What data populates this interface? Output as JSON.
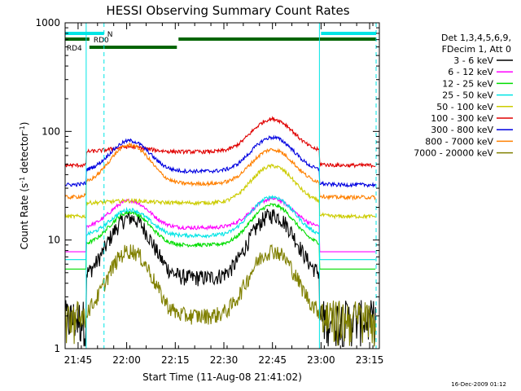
{
  "chart_data": {
    "type": "line",
    "title": "HESSI Observing Summary Count Rates",
    "xlabel": "Start Time (11-Aug-08 21:41:02)",
    "ylabel_main": "Count Rate (s",
    "ylabel_sup": "-1",
    "ylabel_mid": " detector",
    "ylabel_sup2": "-1",
    "ylabel_end": ")",
    "y_scale": "log",
    "ylim": [
      1,
      1000
    ],
    "xlim_minutes": [
      0,
      97
    ],
    "x_ticks": [
      {
        "label": "21:45",
        "t": 4
      },
      {
        "label": "22:00",
        "t": 19
      },
      {
        "label": "22:15",
        "t": 34
      },
      {
        "label": "22:30",
        "t": 49
      },
      {
        "label": "22:45",
        "t": 64
      },
      {
        "label": "23:00",
        "t": 79
      },
      {
        "label": "23:15",
        "t": 94
      }
    ],
    "y_ticks": [
      {
        "label": "1",
        "v": 1
      },
      {
        "label": "10",
        "v": 10
      },
      {
        "label": "100",
        "v": 100
      },
      {
        "label": "1000",
        "v": 1000
      }
    ],
    "grid": false,
    "legend_position": "right",
    "legend_header": [
      "Det 1,3,4,5,6,9,",
      "FDecim 1, Att 0"
    ],
    "series": [
      {
        "name": "3 - 6 keV",
        "color": "#000000",
        "base": 4.5,
        "peaks": [
          16,
          17
        ],
        "night_low": true
      },
      {
        "name": "6 - 12 keV",
        "color": "#ff00ff",
        "base": 13,
        "peaks": [
          23,
          24
        ],
        "night_low": true
      },
      {
        "name": "12 - 25 keV",
        "color": "#00dd00",
        "base": 9,
        "peaks": [
          18,
          21
        ],
        "night_low": true
      },
      {
        "name": "25 - 50 keV",
        "color": "#00e5e5",
        "base": 11,
        "peaks": [
          19,
          25
        ],
        "night_low": true
      },
      {
        "name": "50 - 100 keV",
        "color": "#cccc00",
        "base": 22,
        "peaks": [
          23,
          48
        ],
        "night_low": false
      },
      {
        "name": "100 - 300 keV",
        "color": "#e00000",
        "base": 65,
        "peaks": [
          72,
          130
        ],
        "night_low": false
      },
      {
        "name": "300 - 800 keV",
        "color": "#0000e0",
        "base": 43,
        "peaks": [
          82,
          88
        ],
        "night_low": false
      },
      {
        "name": "800 - 7000 keV",
        "color": "#ff8000",
        "base": 33,
        "peaks": [
          75,
          68
        ],
        "night_low": false
      },
      {
        "name": "7000 - 20000 keV",
        "color": "#808000",
        "base": 2.0,
        "peaks": [
          8,
          8
        ],
        "night_low": true
      }
    ],
    "peak_times": [
      20,
      64
    ],
    "data_window": [
      0,
      96
    ],
    "night_window": [
      -1,
      6.5
    ],
    "night_end": 78.5,
    "saa_gap": [
      34.3,
      34.5
    ]
  },
  "flags": [
    {
      "label": "N",
      "color": "#00e5e5",
      "segments": [
        [
          0,
          12
        ],
        [
          79,
          96
        ]
      ],
      "row": 0
    },
    {
      "label": "RD0",
      "color": "#006400",
      "segments": [
        [
          0,
          7.5
        ],
        [
          35,
          96
        ]
      ],
      "row": 1
    },
    {
      "label": "RD4",
      "color": "#006400",
      "segments": [
        [
          7.5,
          34.5
        ]
      ],
      "row": 2
    }
  ],
  "event_lines": [
    {
      "t": 6.5,
      "color": "#00e5e5",
      "style": "solid"
    },
    {
      "t": 12,
      "color": "#00e5e5",
      "style": "dashed"
    },
    {
      "t": 78.5,
      "color": "#00e5e5",
      "style": "solid"
    },
    {
      "t": 96,
      "color": "#00e5e5",
      "style": "dashed"
    }
  ],
  "timestamp": "16-Dec-2009 01:12"
}
